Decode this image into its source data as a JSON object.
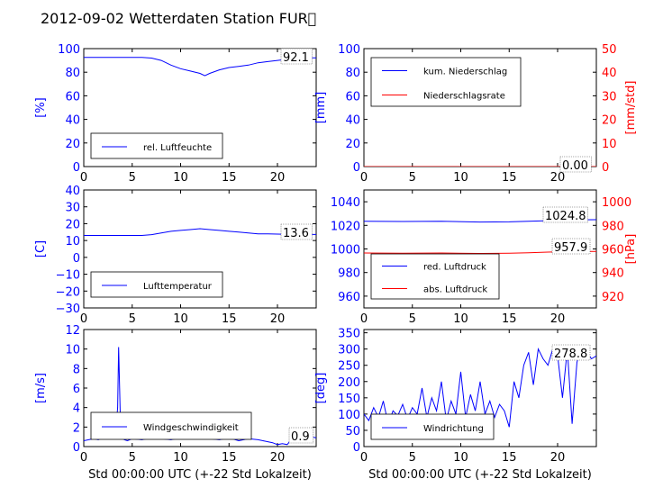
{
  "title": "2012-09-02 Wetterdaten Station FUR\u0000",
  "colors": {
    "blue": "#0000ff",
    "red": "#ff0000",
    "black": "#000000"
  },
  "chart_data": [
    {
      "type": "line",
      "xlim": [
        0,
        24
      ],
      "ylim": [
        0,
        100
      ],
      "xticks": [
        "0",
        "5",
        "10",
        "15",
        "20"
      ],
      "yticks": [
        "0",
        "20",
        "40",
        "60",
        "80",
        "100"
      ],
      "ylabel": "[%]",
      "xlabel": "",
      "legend": {
        "placement": "lower-left",
        "entries": [
          "rel. Luftfeuchte"
        ]
      },
      "annotation": "92.1",
      "series": [
        {
          "name": "rel. Luftfeuchte",
          "color": "#0000ff",
          "x": [
            0,
            2,
            4,
            6,
            7,
            8,
            9,
            10,
            11,
            12,
            12.5,
            13,
            14,
            15,
            16,
            17,
            18,
            19,
            20,
            21,
            22,
            23,
            24
          ],
          "y": [
            92.5,
            92.5,
            92.5,
            92.5,
            92,
            90,
            86,
            83,
            81,
            79,
            77,
            79,
            82,
            84,
            85,
            86,
            88,
            89,
            90,
            91,
            92,
            92.1,
            92.1
          ]
        }
      ]
    },
    {
      "type": "line",
      "xlim": [
        0,
        24
      ],
      "ylim": [
        0,
        100
      ],
      "ylim2": [
        0,
        50
      ],
      "xticks": [
        "0",
        "5",
        "10",
        "15",
        "20"
      ],
      "yticks": [
        "0",
        "20",
        "40",
        "60",
        "80",
        "100"
      ],
      "yticks2": [
        "0",
        "10",
        "20",
        "30",
        "40",
        "50"
      ],
      "ylabel": "[mm]",
      "ylabel2": "[mm/std]",
      "xlabel": "",
      "legend": {
        "placement": "upper-left",
        "entries": [
          "kum. Niederschlag",
          "Niederschlagsrate"
        ]
      },
      "annotation": "0.00",
      "series": [
        {
          "name": "kum. Niederschlag",
          "color": "#0000ff",
          "x": [
            0,
            24
          ],
          "y": [
            0,
            0
          ]
        },
        {
          "name": "Niederschlagsrate",
          "color": "#ff0000",
          "x": [
            0,
            24
          ],
          "y": [
            0,
            0
          ]
        }
      ]
    },
    {
      "type": "line",
      "xlim": [
        0,
        24
      ],
      "ylim": [
        -30,
        40
      ],
      "xticks": [
        "0",
        "5",
        "10",
        "15",
        "20"
      ],
      "yticks": [
        "−30",
        "−20",
        "−10",
        "0",
        "10",
        "20",
        "30",
        "40"
      ],
      "ylabel": "[C]",
      "xlabel": "",
      "legend": {
        "placement": "lower-left",
        "entries": [
          "Lufttemperatur"
        ]
      },
      "annotation": "13.6",
      "series": [
        {
          "name": "Lufttemperatur",
          "color": "#0000ff",
          "x": [
            0,
            2,
            4,
            6,
            7,
            8,
            9,
            10,
            11,
            12,
            13,
            14,
            15,
            16,
            17,
            18,
            19,
            20,
            21,
            22,
            23,
            24
          ],
          "y": [
            13,
            13,
            13,
            13,
            13.5,
            14.5,
            15.5,
            16,
            16.5,
            17,
            16.5,
            16,
            15.5,
            15,
            14.5,
            14,
            14,
            13.8,
            13.7,
            13.6,
            13.6,
            13.6
          ]
        }
      ]
    },
    {
      "type": "line",
      "xlim": [
        0,
        24
      ],
      "ylim": [
        950,
        1050
      ],
      "ylim2": [
        910,
        1010
      ],
      "xticks": [
        "0",
        "5",
        "10",
        "15",
        "20"
      ],
      "yticks": [
        "960",
        "980",
        "1000",
        "1020",
        "1040"
      ],
      "yticks2": [
        "920",
        "940",
        "960",
        "980",
        "1000"
      ],
      "ylabel": "",
      "ylabel2": "[hPa]",
      "xlabel": "",
      "legend": {
        "placement": "lower-left",
        "entries": [
          "red. Luftdruck",
          "abs. Luftdruck"
        ]
      },
      "annotations": [
        "1024.8",
        "957.9"
      ],
      "series": [
        {
          "name": "red. Luftdruck",
          "color": "#0000ff",
          "x": [
            0,
            4,
            8,
            12,
            15,
            17,
            19,
            20,
            22,
            24
          ],
          "y": [
            1023.5,
            1023.3,
            1023.5,
            1022.8,
            1023.0,
            1023.5,
            1024.0,
            1024.3,
            1024.7,
            1024.8
          ]
        },
        {
          "name": "abs. Luftdruck",
          "color": "#ff0000",
          "x": [
            0,
            4,
            8,
            12,
            15,
            17,
            19,
            20,
            22,
            24
          ],
          "y": [
            956.6,
            956.4,
            956.6,
            956.2,
            956.4,
            956.8,
            957.3,
            957.5,
            957.8,
            957.9
          ]
        }
      ]
    },
    {
      "type": "line",
      "xlim": [
        0,
        24
      ],
      "ylim": [
        0,
        12
      ],
      "xticks": [
        "0",
        "5",
        "10",
        "15",
        "20"
      ],
      "yticks": [
        "0",
        "2",
        "4",
        "6",
        "8",
        "10",
        "12"
      ],
      "ylabel": "[m/s]",
      "xlabel": "Std 00:00:00 UTC (+-22 Std Lokalzeit)",
      "legend": {
        "placement": "lower-left",
        "entries": [
          "Windgeschwindigkeit"
        ]
      },
      "annotation": "0.9",
      "series": [
        {
          "name": "Windgeschwindigkeit",
          "color": "#0000ff",
          "x": [
            0,
            0.5,
            1,
            1.5,
            2,
            2.5,
            3,
            3.3,
            3.5,
            3.6,
            3.7,
            3.8,
            3.9,
            4,
            4.2,
            4.5,
            5,
            6,
            7,
            8,
            9,
            10,
            11,
            12,
            13,
            14,
            15,
            16,
            17,
            18,
            19,
            19.5,
            20,
            20.5,
            21,
            21.5,
            22,
            22.5,
            23,
            23.5,
            24
          ],
          "y": [
            0.6,
            0.7,
            0.8,
            0.7,
            0.9,
            1.2,
            1.0,
            1.5,
            4.0,
            10.2,
            6.0,
            2.0,
            1.5,
            0.8,
            0.7,
            0.6,
            0.8,
            0.7,
            0.9,
            0.8,
            0.7,
            0.9,
            0.8,
            1.0,
            0.8,
            0.7,
            0.9,
            0.6,
            0.8,
            0.7,
            0.5,
            0.4,
            0.2,
            0.3,
            0.2,
            0.8,
            1.5,
            1.1,
            0.9,
            1.0,
            0.9
          ]
        }
      ]
    },
    {
      "type": "line",
      "xlim": [
        0,
        24
      ],
      "ylim": [
        0,
        360
      ],
      "xticks": [
        "0",
        "5",
        "10",
        "15",
        "20"
      ],
      "yticks": [
        "0",
        "50",
        "100",
        "150",
        "200",
        "250",
        "300",
        "350"
      ],
      "ylabel": "[deg]",
      "xlabel": "Std 00:00:00 UTC (+-22 Std Lokalzeit)",
      "legend": {
        "placement": "lower-left",
        "entries": [
          "Windrichtung"
        ]
      },
      "annotation": "278.8",
      "series": [
        {
          "name": "Windrichtung",
          "color": "#0000ff",
          "x": [
            0,
            0.5,
            1,
            1.5,
            2,
            2.5,
            3,
            3.5,
            4,
            4.5,
            5,
            5.5,
            6,
            6.5,
            7,
            7.5,
            8,
            8.5,
            9,
            9.5,
            10,
            10.5,
            11,
            11.5,
            12,
            12.5,
            13,
            13.5,
            14,
            14.5,
            15,
            15.5,
            16,
            16.5,
            17,
            17.5,
            18,
            18.5,
            19,
            19.5,
            20,
            20.5,
            21,
            21.5,
            22,
            22.5,
            23,
            23.5,
            24
          ],
          "y": [
            100,
            80,
            120,
            90,
            140,
            70,
            110,
            95,
            130,
            85,
            120,
            100,
            180,
            90,
            150,
            110,
            200,
            80,
            140,
            100,
            230,
            90,
            160,
            110,
            200,
            100,
            140,
            90,
            130,
            110,
            60,
            200,
            150,
            250,
            290,
            190,
            300,
            270,
            250,
            300,
            280,
            150,
            300,
            70,
            260,
            300,
            290,
            270,
            279
          ]
        }
      ]
    }
  ]
}
